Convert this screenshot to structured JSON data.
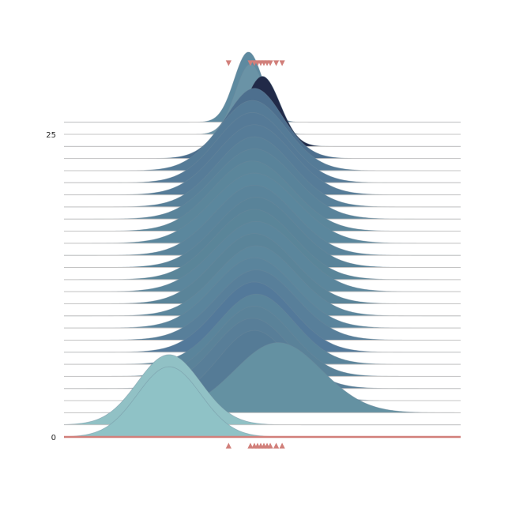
{
  "chart_data": {
    "type": "area",
    "subtype": "ridgeline",
    "title": "",
    "xlabel": "",
    "ylabel": "",
    "grid": false,
    "legend": "none",
    "y_ticks": [
      {
        "value": 0,
        "label": "0"
      },
      {
        "value": 25,
        "label": "25"
      }
    ],
    "x_range": [
      0,
      100
    ],
    "y_range": [
      -1.6,
      30.5
    ],
    "ridge_height": 5.8,
    "colors": {
      "baseline": "#d17f7a",
      "marker": "#d17f7a",
      "ridge_line": "#c4c4c4",
      "ridge_stroke": "#6f8a9c",
      "dark_ridge": "#212a48",
      "teal_light": "#8fc2c6"
    },
    "series": [
      {
        "level": 0,
        "mean": 26.5,
        "sd": 8.0,
        "color": "#8fc2c6"
      },
      {
        "level": 1,
        "mean": 26.5,
        "sd": 8.0,
        "color": "#91c1c5"
      },
      {
        "level": 2,
        "mean": 54.0,
        "sd": 11.0,
        "color": "#6491a2"
      },
      {
        "level": 3,
        "mean": 48.0,
        "sd": 9.0,
        "color": "#557b96"
      },
      {
        "level": 4,
        "mean": 47.5,
        "sd": 9.5,
        "color": "#587e98"
      },
      {
        "level": 5,
        "mean": 48.0,
        "sd": 9.5,
        "color": "#5a8299"
      },
      {
        "level": 6,
        "mean": 48.5,
        "sd": 9.5,
        "color": "#5a849b"
      },
      {
        "level": 7,
        "mean": 48.0,
        "sd": 9.5,
        "color": "#53799a"
      },
      {
        "level": 8,
        "mean": 48.5,
        "sd": 10.0,
        "color": "#587f9a"
      },
      {
        "level": 9,
        "mean": 48.0,
        "sd": 10.0,
        "color": "#5a849c"
      },
      {
        "level": 10,
        "mean": 48.5,
        "sd": 10.0,
        "color": "#5c879d"
      },
      {
        "level": 11,
        "mean": 48.0,
        "sd": 10.0,
        "color": "#5a8499"
      },
      {
        "level": 12,
        "mean": 48.5,
        "sd": 10.5,
        "color": "#5b869c"
      },
      {
        "level": 13,
        "mean": 48.0,
        "sd": 10.0,
        "color": "#5a8599"
      },
      {
        "level": 14,
        "mean": 48.5,
        "sd": 10.0,
        "color": "#598399"
      },
      {
        "level": 15,
        "mean": 48.0,
        "sd": 10.0,
        "color": "#5a849b"
      },
      {
        "level": 16,
        "mean": 48.0,
        "sd": 10.5,
        "color": "#5b879d"
      },
      {
        "level": 17,
        "mean": 47.5,
        "sd": 10.0,
        "color": "#5b869b"
      },
      {
        "level": 18,
        "mean": 48.0,
        "sd": 10.0,
        "color": "#59839a"
      },
      {
        "level": 19,
        "mean": 48.0,
        "sd": 9.5,
        "color": "#588099"
      },
      {
        "level": 20,
        "mean": 48.0,
        "sd": 9.5,
        "color": "#567c98"
      },
      {
        "level": 21,
        "mean": 47.5,
        "sd": 9.0,
        "color": "#557a97"
      },
      {
        "level": 22,
        "mean": 47.5,
        "sd": 8.5,
        "color": "#557b97"
      },
      {
        "level": 23,
        "mean": 48.0,
        "sd": 7.0,
        "color": "#4d6f8e"
      },
      {
        "level": 24,
        "mean": 50.0,
        "sd": 4.5,
        "color": "#212a48"
      },
      {
        "level": 25,
        "mean": 47.0,
        "sd": 3.8,
        "color": "#6a93a6"
      },
      {
        "level": 26,
        "mean": 46.5,
        "sd": 3.6,
        "color": "#5e8aa0"
      }
    ],
    "markers_top": {
      "symbol": "down-triangle",
      "x": [
        41.5,
        47,
        48,
        48.8,
        49.6,
        50.4,
        51.2,
        52,
        53.5,
        55
      ]
    },
    "markers_bottom": {
      "symbol": "up-triangle",
      "x": [
        41.5,
        47,
        48,
        48.8,
        49.6,
        50.4,
        51.2,
        52,
        53.5,
        55
      ]
    }
  }
}
